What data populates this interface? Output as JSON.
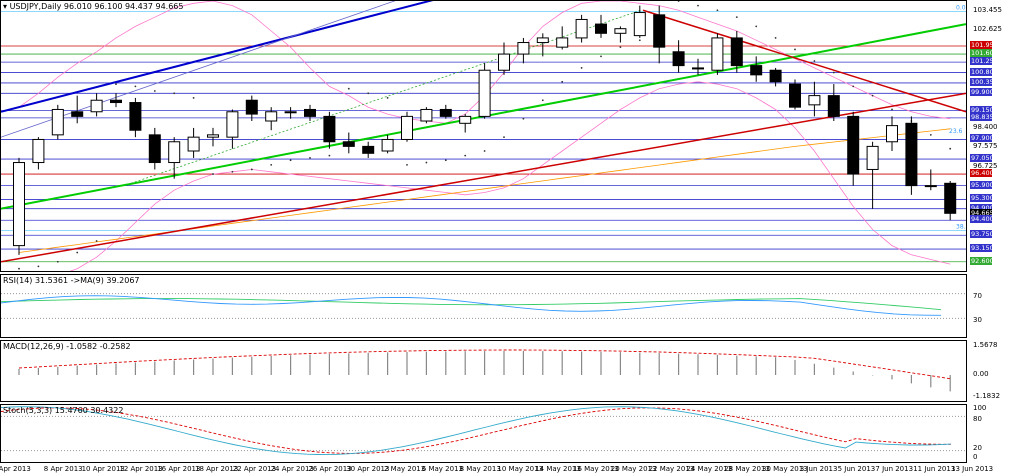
{
  "main": {
    "title": "USDJPY,Daily  96.010 96.100 94.437 94.665",
    "price_axis": [
      {
        "label": "103.455",
        "color": "none"
      },
      {
        "label": "102.625",
        "color": "none"
      },
      {
        "label": "101.950",
        "color": "#cc0000"
      },
      {
        "label": "101.600",
        "color": "#33aa33"
      },
      {
        "label": "101.250",
        "color": "#3333cc"
      },
      {
        "label": "100.800",
        "color": "#3333cc"
      },
      {
        "label": "100.350",
        "color": "#3333cc"
      },
      {
        "label": "99.900",
        "color": "#3333cc"
      },
      {
        "label": "99.150",
        "color": "#3333cc"
      },
      {
        "label": "98.835",
        "color": "#3333cc"
      },
      {
        "label": "98.400",
        "color": "none"
      },
      {
        "label": "97.900",
        "color": "#3333cc"
      },
      {
        "label": "97.575",
        "color": "none"
      },
      {
        "label": "97.050",
        "color": "#3333cc"
      },
      {
        "label": "96.725",
        "color": "none"
      },
      {
        "label": "96.400",
        "color": "#cc0000"
      },
      {
        "label": "95.900",
        "color": "#3333cc"
      },
      {
        "label": "95.300",
        "color": "#3333cc"
      },
      {
        "label": "94.900",
        "color": "#3333cc"
      },
      {
        "label": "94.665",
        "color": "#000000"
      },
      {
        "label": "94.400",
        "color": "#3333cc"
      },
      {
        "label": "93.750",
        "color": "#3333cc"
      },
      {
        "label": "93.150",
        "color": "#3333cc"
      },
      {
        "label": "92.600",
        "color": "#33aa33"
      }
    ],
    "fib_labels": [
      "0.0",
      "23.6",
      "38.2"
    ]
  },
  "rsi": {
    "title": "RSI(14) 31.5361  ->MA(9) 39.2067",
    "axis": [
      "70",
      "30"
    ]
  },
  "macd": {
    "title": "MACD(12,26,9) -1.0582 -0.2582",
    "axis": [
      "1.5678",
      "0.00",
      "-1.1832"
    ]
  },
  "stoch": {
    "title": "Stoch(5,3,3) 15.4760 30.4322",
    "axis": [
      "100",
      "80",
      "20",
      "0"
    ]
  },
  "dates": [
    "4 Apr 2013",
    "8 Apr 2013",
    "10 Apr 2013",
    "12 Apr 2013",
    "16 Apr 2013",
    "18 Apr 2013",
    "22 Apr 2013",
    "24 Apr 2013",
    "26 Apr 2013",
    "30 Apr 2013",
    "2 May 2013",
    "6 May 2013",
    "8 May 2013",
    "10 May 2013",
    "14 May 2013",
    "16 May 2013",
    "20 May 2013",
    "22 May 2013",
    "24 May 2013",
    "28 May 2013",
    "30 May 2013",
    "3 Jun 2013",
    "5 Jun 2013",
    "7 Jun 2013",
    "11 Jun 2013",
    "13 Jun 2013"
  ],
  "colors": {
    "support_resistance": "#3333cc",
    "red_line": "#cc0000",
    "green_line": "#00cc00",
    "blue_trend": "#0000cc",
    "bollinger": "#ff77cc",
    "ma_orange": "#ff9900",
    "rsi_main": "#3399ff",
    "rsi_signal": "#33cc66",
    "macd_signal": "#dd0000",
    "stoch_main": "#33aacc",
    "stoch_signal": "#dd0000"
  },
  "chart_data": {
    "type": "candlestick",
    "symbol": "USDJPY",
    "timeframe": "Daily",
    "last_bar": {
      "open": 96.01,
      "high": 96.1,
      "low": 94.437,
      "close": 94.665
    },
    "candles": [
      {
        "o": 93.3,
        "h": 97.1,
        "l": 92.9,
        "c": 96.9
      },
      {
        "o": 96.9,
        "h": 98.0,
        "l": 96.6,
        "c": 97.9
      },
      {
        "o": 98.1,
        "h": 99.4,
        "l": 97.9,
        "c": 99.2
      },
      {
        "o": 99.1,
        "h": 99.8,
        "l": 98.6,
        "c": 98.9
      },
      {
        "o": 99.1,
        "h": 99.9,
        "l": 98.9,
        "c": 99.6
      },
      {
        "o": 99.6,
        "h": 99.9,
        "l": 99.3,
        "c": 99.5
      },
      {
        "o": 99.5,
        "h": 99.7,
        "l": 98.0,
        "c": 98.3
      },
      {
        "o": 98.1,
        "h": 98.4,
        "l": 96.6,
        "c": 96.9
      },
      {
        "o": 96.9,
        "h": 98.0,
        "l": 96.2,
        "c": 97.8
      },
      {
        "o": 97.4,
        "h": 98.4,
        "l": 97.1,
        "c": 98.0
      },
      {
        "o": 98.0,
        "h": 98.4,
        "l": 97.6,
        "c": 98.1
      },
      {
        "o": 98.0,
        "h": 99.2,
        "l": 97.5,
        "c": 99.1
      },
      {
        "o": 99.6,
        "h": 99.8,
        "l": 98.7,
        "c": 99.0
      },
      {
        "o": 98.7,
        "h": 99.3,
        "l": 98.3,
        "c": 99.1
      },
      {
        "o": 99.1,
        "h": 99.3,
        "l": 98.8,
        "c": 99.1
      },
      {
        "o": 99.2,
        "h": 99.4,
        "l": 98.7,
        "c": 98.9
      },
      {
        "o": 98.9,
        "h": 99.1,
        "l": 97.5,
        "c": 97.8
      },
      {
        "o": 97.8,
        "h": 98.2,
        "l": 97.3,
        "c": 97.6
      },
      {
        "o": 97.6,
        "h": 97.8,
        "l": 97.1,
        "c": 97.3
      },
      {
        "o": 97.4,
        "h": 98.1,
        "l": 97.3,
        "c": 97.9
      },
      {
        "o": 97.9,
        "h": 99.1,
        "l": 97.8,
        "c": 98.9
      },
      {
        "o": 98.7,
        "h": 99.3,
        "l": 98.6,
        "c": 99.2
      },
      {
        "o": 99.2,
        "h": 99.4,
        "l": 98.8,
        "c": 98.9
      },
      {
        "o": 98.6,
        "h": 99.0,
        "l": 98.2,
        "c": 98.9
      },
      {
        "o": 98.9,
        "h": 101.2,
        "l": 98.8,
        "c": 100.9
      },
      {
        "o": 100.9,
        "h": 102.1,
        "l": 100.7,
        "c": 101.6
      },
      {
        "o": 101.6,
        "h": 102.3,
        "l": 101.2,
        "c": 102.1
      },
      {
        "o": 102.1,
        "h": 102.5,
        "l": 101.5,
        "c": 102.3
      },
      {
        "o": 101.9,
        "h": 102.8,
        "l": 101.8,
        "c": 102.3
      },
      {
        "o": 102.3,
        "h": 103.3,
        "l": 102.1,
        "c": 103.1
      },
      {
        "o": 102.9,
        "h": 103.3,
        "l": 102.3,
        "c": 102.5
      },
      {
        "o": 102.5,
        "h": 102.8,
        "l": 102.1,
        "c": 102.7
      },
      {
        "o": 102.4,
        "h": 103.7,
        "l": 102.3,
        "c": 103.4
      },
      {
        "o": 103.3,
        "h": 103.7,
        "l": 101.2,
        "c": 101.9
      },
      {
        "o": 101.7,
        "h": 102.2,
        "l": 100.8,
        "c": 101.1
      },
      {
        "o": 101.0,
        "h": 101.4,
        "l": 100.7,
        "c": 101.0
      },
      {
        "o": 100.9,
        "h": 102.5,
        "l": 100.7,
        "c": 102.3
      },
      {
        "o": 102.3,
        "h": 102.6,
        "l": 100.8,
        "c": 101.1
      },
      {
        "o": 101.1,
        "h": 101.5,
        "l": 100.4,
        "c": 100.7
      },
      {
        "o": 100.9,
        "h": 101.0,
        "l": 100.2,
        "c": 100.4
      },
      {
        "o": 100.3,
        "h": 100.5,
        "l": 99.2,
        "c": 99.3
      },
      {
        "o": 99.4,
        "h": 100.4,
        "l": 98.9,
        "c": 99.8
      },
      {
        "o": 99.8,
        "h": 100.3,
        "l": 98.7,
        "c": 98.9
      },
      {
        "o": 98.9,
        "h": 99.1,
        "l": 95.9,
        "c": 96.4
      },
      {
        "o": 96.6,
        "h": 97.8,
        "l": 94.9,
        "c": 97.6
      },
      {
        "o": 97.8,
        "h": 98.9,
        "l": 97.4,
        "c": 98.5
      },
      {
        "o": 98.6,
        "h": 98.9,
        "l": 95.5,
        "c": 95.9
      },
      {
        "o": 95.9,
        "h": 96.6,
        "l": 95.7,
        "c": 95.9
      },
      {
        "o": 96.0,
        "h": 96.1,
        "l": 94.4,
        "c": 94.7
      }
    ],
    "ylim": [
      92.2,
      103.9
    ]
  }
}
